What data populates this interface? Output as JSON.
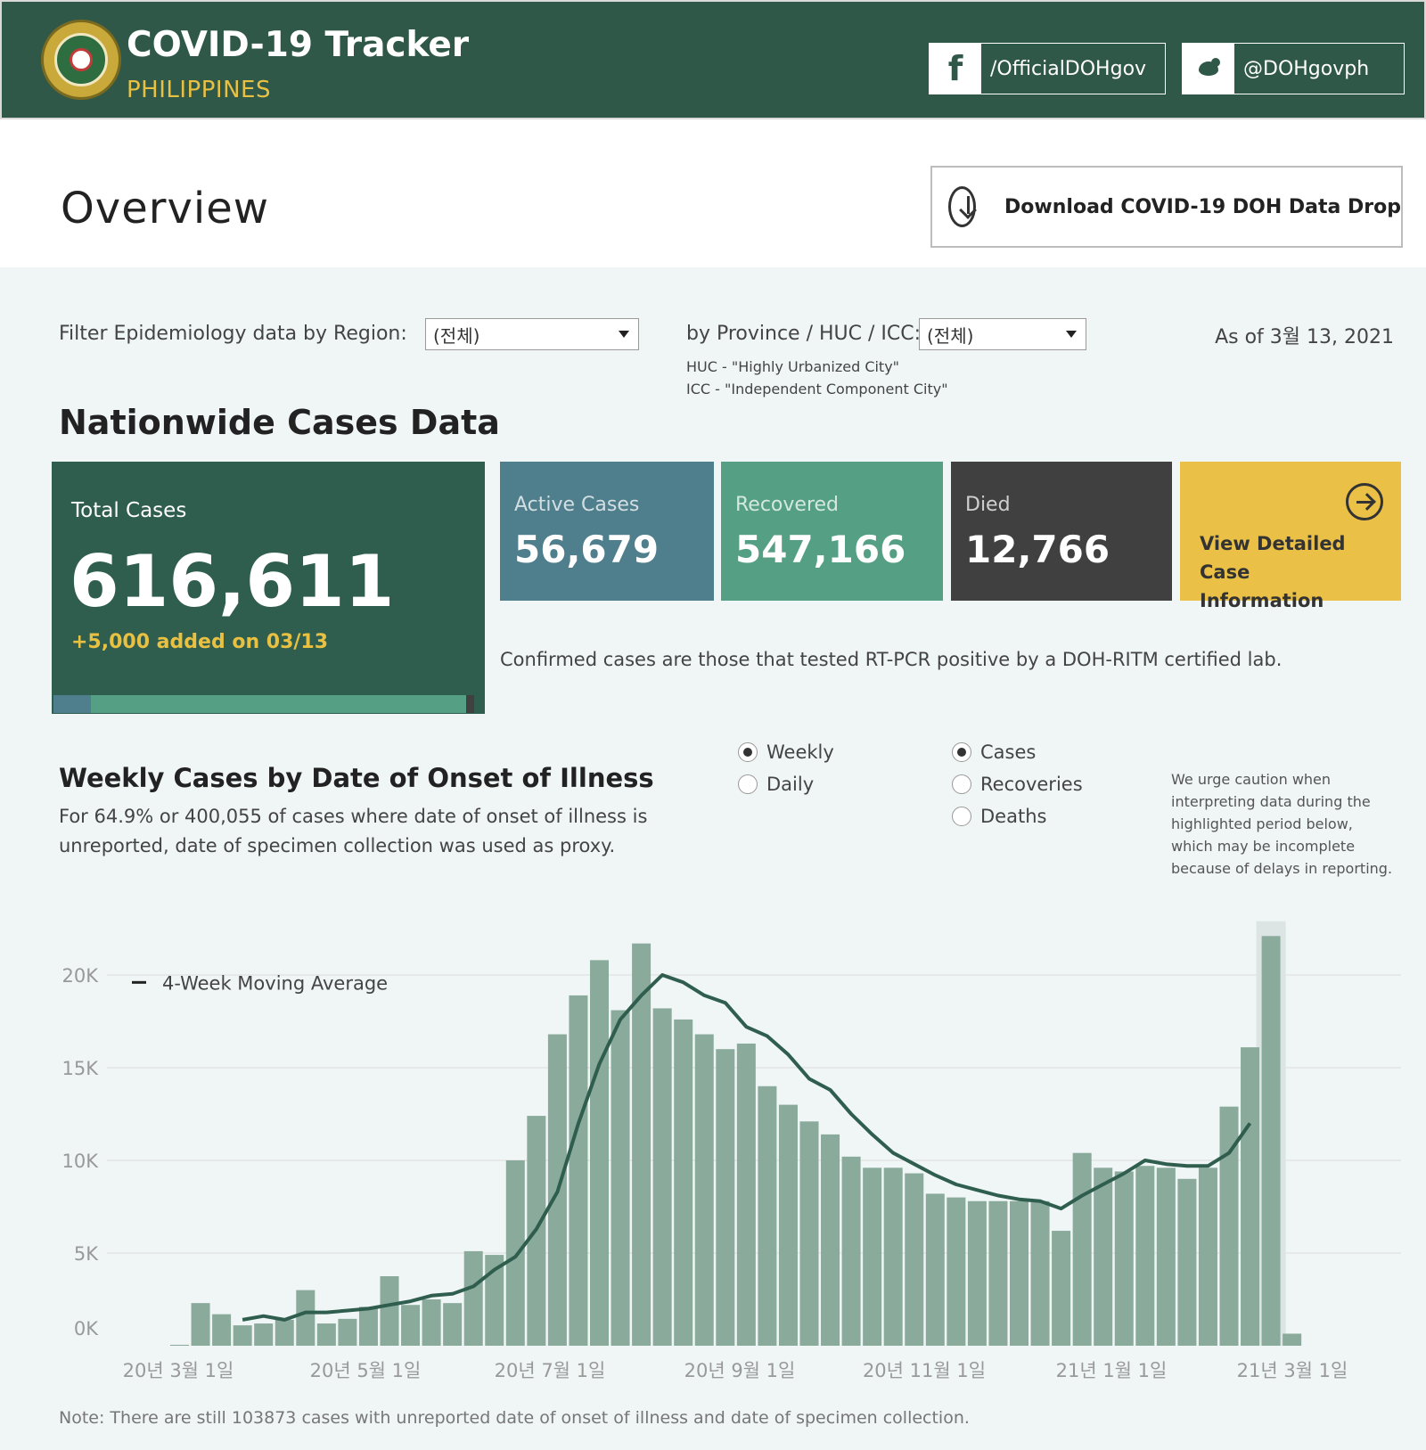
{
  "header": {
    "title": "COVID-19 Tracker",
    "subtitle": "PHILIPPINES",
    "facebook_label": "/OfficialDOHgov",
    "twitter_label": "@DOHgovph"
  },
  "overview": {
    "title": "Overview",
    "download_label": "Download COVID-19 DOH Data Drop"
  },
  "filters": {
    "region_label": "Filter Epidemiology data by Region:",
    "region_value": "(전체)",
    "province_label": "by Province / HUC / ICC:",
    "province_value": "(전체)",
    "huc_note": "HUC - \"Highly Urbanized City\"",
    "icc_note": "ICC - \"Independent Component City\"",
    "as_of": "As of 3월 13, 2021"
  },
  "cases": {
    "section_title": "Nationwide Cases Data",
    "total_label": "Total Cases",
    "total_value": "616,611",
    "added": "+5,000 added on 03/13",
    "active_label": "Active Cases",
    "active_value": "56,679",
    "recovered_label": "Recovered",
    "recovered_value": "547,166",
    "died_label": "Died",
    "died_value": "12,766",
    "detail_label": "View Detailed Case Information",
    "confirmed_note": "Confirmed cases are those that tested RT-PCR positive by a DOH-RITM certified lab.",
    "colors": {
      "total": "#2f5e4f",
      "active": "#4f7e8c",
      "recovered": "#55a085",
      "died": "#404040",
      "detail": "#eac146"
    }
  },
  "weekly": {
    "title": "Weekly Cases by Date of Onset of Illness",
    "desc_line1": "For 64.9% or 400,055 of cases where date of onset of illness is",
    "desc_line2": "unreported, date of specimen collection was used as proxy.",
    "period_options": [
      {
        "label": "Weekly",
        "selected": true
      },
      {
        "label": "Daily",
        "selected": false
      }
    ],
    "metric_options": [
      {
        "label": "Cases",
        "selected": true
      },
      {
        "label": "Recoveries",
        "selected": false
      },
      {
        "label": "Deaths",
        "selected": false
      }
    ],
    "caution": "We urge caution when interpreting data during the highlighted period below, which may be incomplete because of delays in reporting.",
    "footnote": "Note: There are still 103873 cases with unreported date of onset of illness and date of specimen collection."
  },
  "chart_data": {
    "type": "bar",
    "legend": "4-Week Moving Average",
    "y_ticks": [
      "0K",
      "5K",
      "10K",
      "15K",
      "20K"
    ],
    "x_labels": [
      "20년 3월 1일",
      "20년 5월 1일",
      "20년 7월 1일",
      "20년 9월 1일",
      "20년 11월 1일",
      "21년 1월 1일",
      "21년 3월 1일"
    ],
    "ylim": [
      0,
      22000
    ],
    "values": [
      50,
      2300,
      1700,
      1100,
      1200,
      1400,
      3000,
      1200,
      1450,
      2100,
      3750,
      2200,
      2500,
      2300,
      5100,
      4900,
      10000,
      12400,
      16800,
      18900,
      20800,
      18100,
      21700,
      18200,
      17600,
      16800,
      16000,
      16300,
      14000,
      13000,
      12100,
      11400,
      10200,
      9600,
      9600,
      9300,
      8200,
      8000,
      7800,
      7800,
      7800,
      7800,
      6200,
      10400,
      9600,
      9400,
      9700,
      9600,
      9000,
      9600,
      12900,
      16100,
      22100,
      650
    ],
    "moving_average": [
      null,
      null,
      null,
      1400,
      1600,
      1400,
      1800,
      1800,
      1900,
      2000,
      2200,
      2400,
      2700,
      2800,
      3200,
      4100,
      4800,
      6300,
      8300,
      12000,
      15200,
      17600,
      18900,
      20000,
      19600,
      18900,
      18500,
      17200,
      16700,
      15700,
      14400,
      13800,
      12500,
      11400,
      10400,
      9800,
      9200,
      8700,
      8400,
      8100,
      7900,
      7800,
      7400,
      8100,
      8700,
      9300,
      10000,
      9800,
      9700,
      9700,
      10400,
      12000,
      null,
      null
    ],
    "highlight_index": 52
  }
}
